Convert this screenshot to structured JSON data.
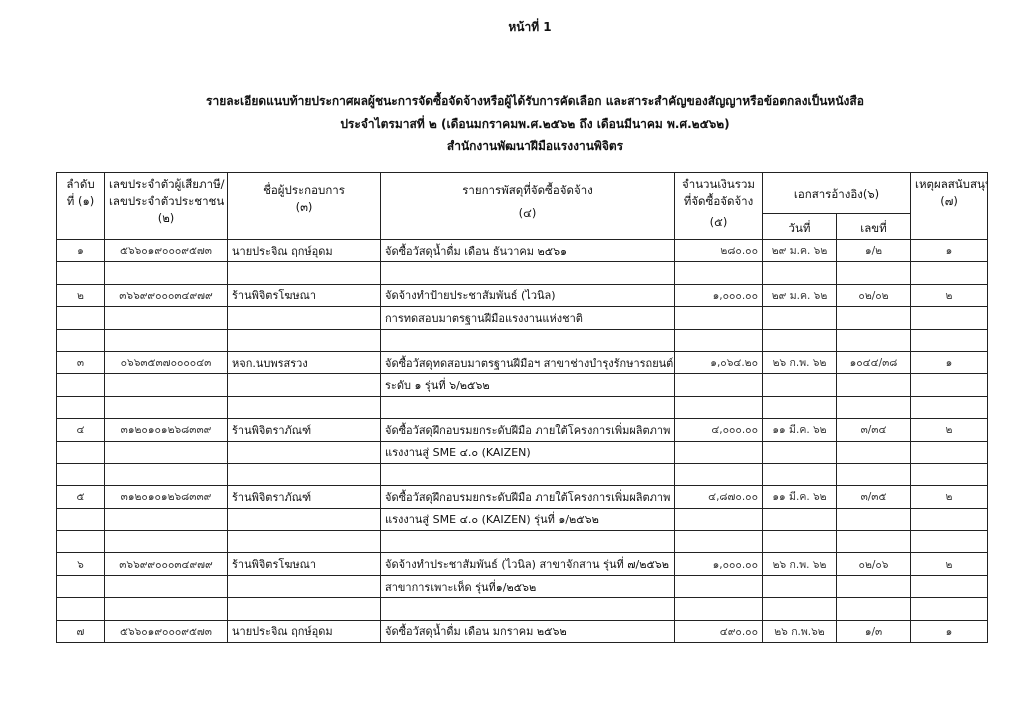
{
  "page_label": "หน้าที่ 1",
  "titles": [
    "รายละเอียดแนบท้ายประกาศผลผู้ชนะการจัดซื้อจัดจ้างหรือผู้ได้รับการคัดเลือก และสาระสำคัญของสัญญาหรือข้อตกลงเป็นหนังสือ",
    "ประจำไตรมาสที่ ๒ (เดือนมกราคมพ.ศ.๒๕๖๒ ถึง เดือนมีนาคม พ.ศ.๒๕๖๒)",
    "สำนักงานพัฒนาฝีมือแรงงานพิจิตร"
  ],
  "headers": {
    "seq": [
      "ลำดับ",
      "ที่ (๑)"
    ],
    "tax_id": [
      "เลขประจำตัวผู้เสียภาษี/",
      "เลขประจำตัวประชาชน",
      "(๒)"
    ],
    "vendor": [
      "ชื่อผู้ประกอบการ",
      "(๓)"
    ],
    "items": [
      "รายการพัสดุที่จัดซื้อจัดจ้าง",
      "(๔)"
    ],
    "amount": [
      "จำนวนเงินรวม",
      "ที่จัดซื้อจัดจ้าง",
      "(๕)"
    ],
    "ref_doc": "เอกสารอ้างอิง(๖)",
    "ref_date": "วันที่",
    "ref_no": "เลขที่",
    "reason": [
      "เหตุผลสนับสนุน",
      "(๗)"
    ]
  },
  "rows": [
    {
      "seq": "๑",
      "tax_id": "๕๖๖๐๑๙๐๐๐๙๕๗๓",
      "vendor": "นายประจิณ ฤกษ์อุดม",
      "items": [
        "จัดซื้อวัสดุน้ำดื่ม เดือน ธันวาคม ๒๕๖๑",
        ""
      ],
      "amount": "๒๘๐.๐๐",
      "date": "๒๙ ม.ค. ๖๒",
      "doc_no": "๑/๒",
      "reason": "๑"
    },
    {
      "seq": "๒",
      "tax_id": "๓๖๖๙๙๐๐๐๓๔๙๗๙",
      "vendor": "ร้านพิจิตรโฆษณา",
      "items": [
        "จัดจ้างทำป้ายประชาสัมพันธ์ (ไวนิล)",
        "การทดสอบมาตรฐานฝีมือแรงงานแห่งชาติ",
        ""
      ],
      "amount": "๑,๐๐๐.๐๐",
      "date": "๒๙ ม.ค. ๖๒",
      "doc_no": "๐๒/๐๒",
      "reason": "๒"
    },
    {
      "seq": "๓",
      "tax_id": "๐๖๖๓๕๓๗๐๐๐๐๔๓",
      "vendor": "หจก.นบพรสรวง",
      "items": [
        "จัดซื้อวัสดุทดสอบมาตรฐานฝีมือฯ สาขาช่างบำรุงรักษารถยนต์",
        "ระดับ ๑ รุ่นที่ ๖/๒๕๖๒",
        ""
      ],
      "amount": "๑,๐๖๔.๒๐",
      "date": "๒๖ ก.พ. ๖๒",
      "doc_no": "๑๐๔๔/๓๘",
      "reason": "๑"
    },
    {
      "seq": "๔",
      "tax_id": "๓๑๒๐๑๐๑๒๖๘๓๓๙",
      "vendor": "ร้านพิจิตราภัณฑ์",
      "items": [
        "จัดซื้อวัสดุฝึกอบรมยกระดับฝีมือ ภายใต้โครงการเพิ่มผลิตภาพ",
        "แรงงานสู่ SME ๔.๐ (KAIZEN)",
        ""
      ],
      "amount": "๔,๐๐๐.๐๐",
      "date": "๑๑ มี.ค. ๖๒",
      "doc_no": "๓/๓๔",
      "reason": "๒"
    },
    {
      "seq": "๕",
      "tax_id": "๓๑๒๐๑๐๑๒๖๘๓๓๙",
      "vendor": "ร้านพิจิตราภัณฑ์",
      "items": [
        "จัดซื้อวัสดุฝึกอบรมยกระดับฝีมือ ภายใต้โครงการเพิ่มผลิตภาพ",
        "แรงงานสู่ SME ๔.๐ (KAIZEN) รุ่นที่ ๑/๒๕๖๒",
        ""
      ],
      "amount": "๔,๘๗๐.๐๐",
      "date": "๑๑ มี.ค. ๖๒",
      "doc_no": "๓/๓๕",
      "reason": "๒"
    },
    {
      "seq": "๖",
      "tax_id": "๓๖๖๙๙๐๐๐๓๔๙๗๙",
      "vendor": "ร้านพิจิตรโฆษณา",
      "items": [
        "จัดจ้างทำประชาสัมพันธ์ (ไวนิล) สาขาจักสาน รุ่นที่ ๗/๒๕๖๒",
        " สาขาการเพาะเห็ด รุ่นที่๑/๒๕๖๒",
        ""
      ],
      "amount": "๑,๐๐๐.๐๐",
      "date": "๒๖ ก.พ. ๖๒",
      "doc_no": "๐๒/๐๖",
      "reason": "๒"
    },
    {
      "seq": "๗",
      "tax_id": "๕๖๖๐๑๙๐๐๐๙๕๗๓",
      "vendor": "นายประจิณ ฤกษ์อุดม",
      "items": [
        "จัดซื้อวัสดุน้ำดื่ม เดือน มกราคม ๒๕๖๒"
      ],
      "amount": "๔๙๐.๐๐",
      "date": "๒๖ ก.พ.๖๒",
      "doc_no": "๑/๓",
      "reason": "๑"
    }
  ]
}
